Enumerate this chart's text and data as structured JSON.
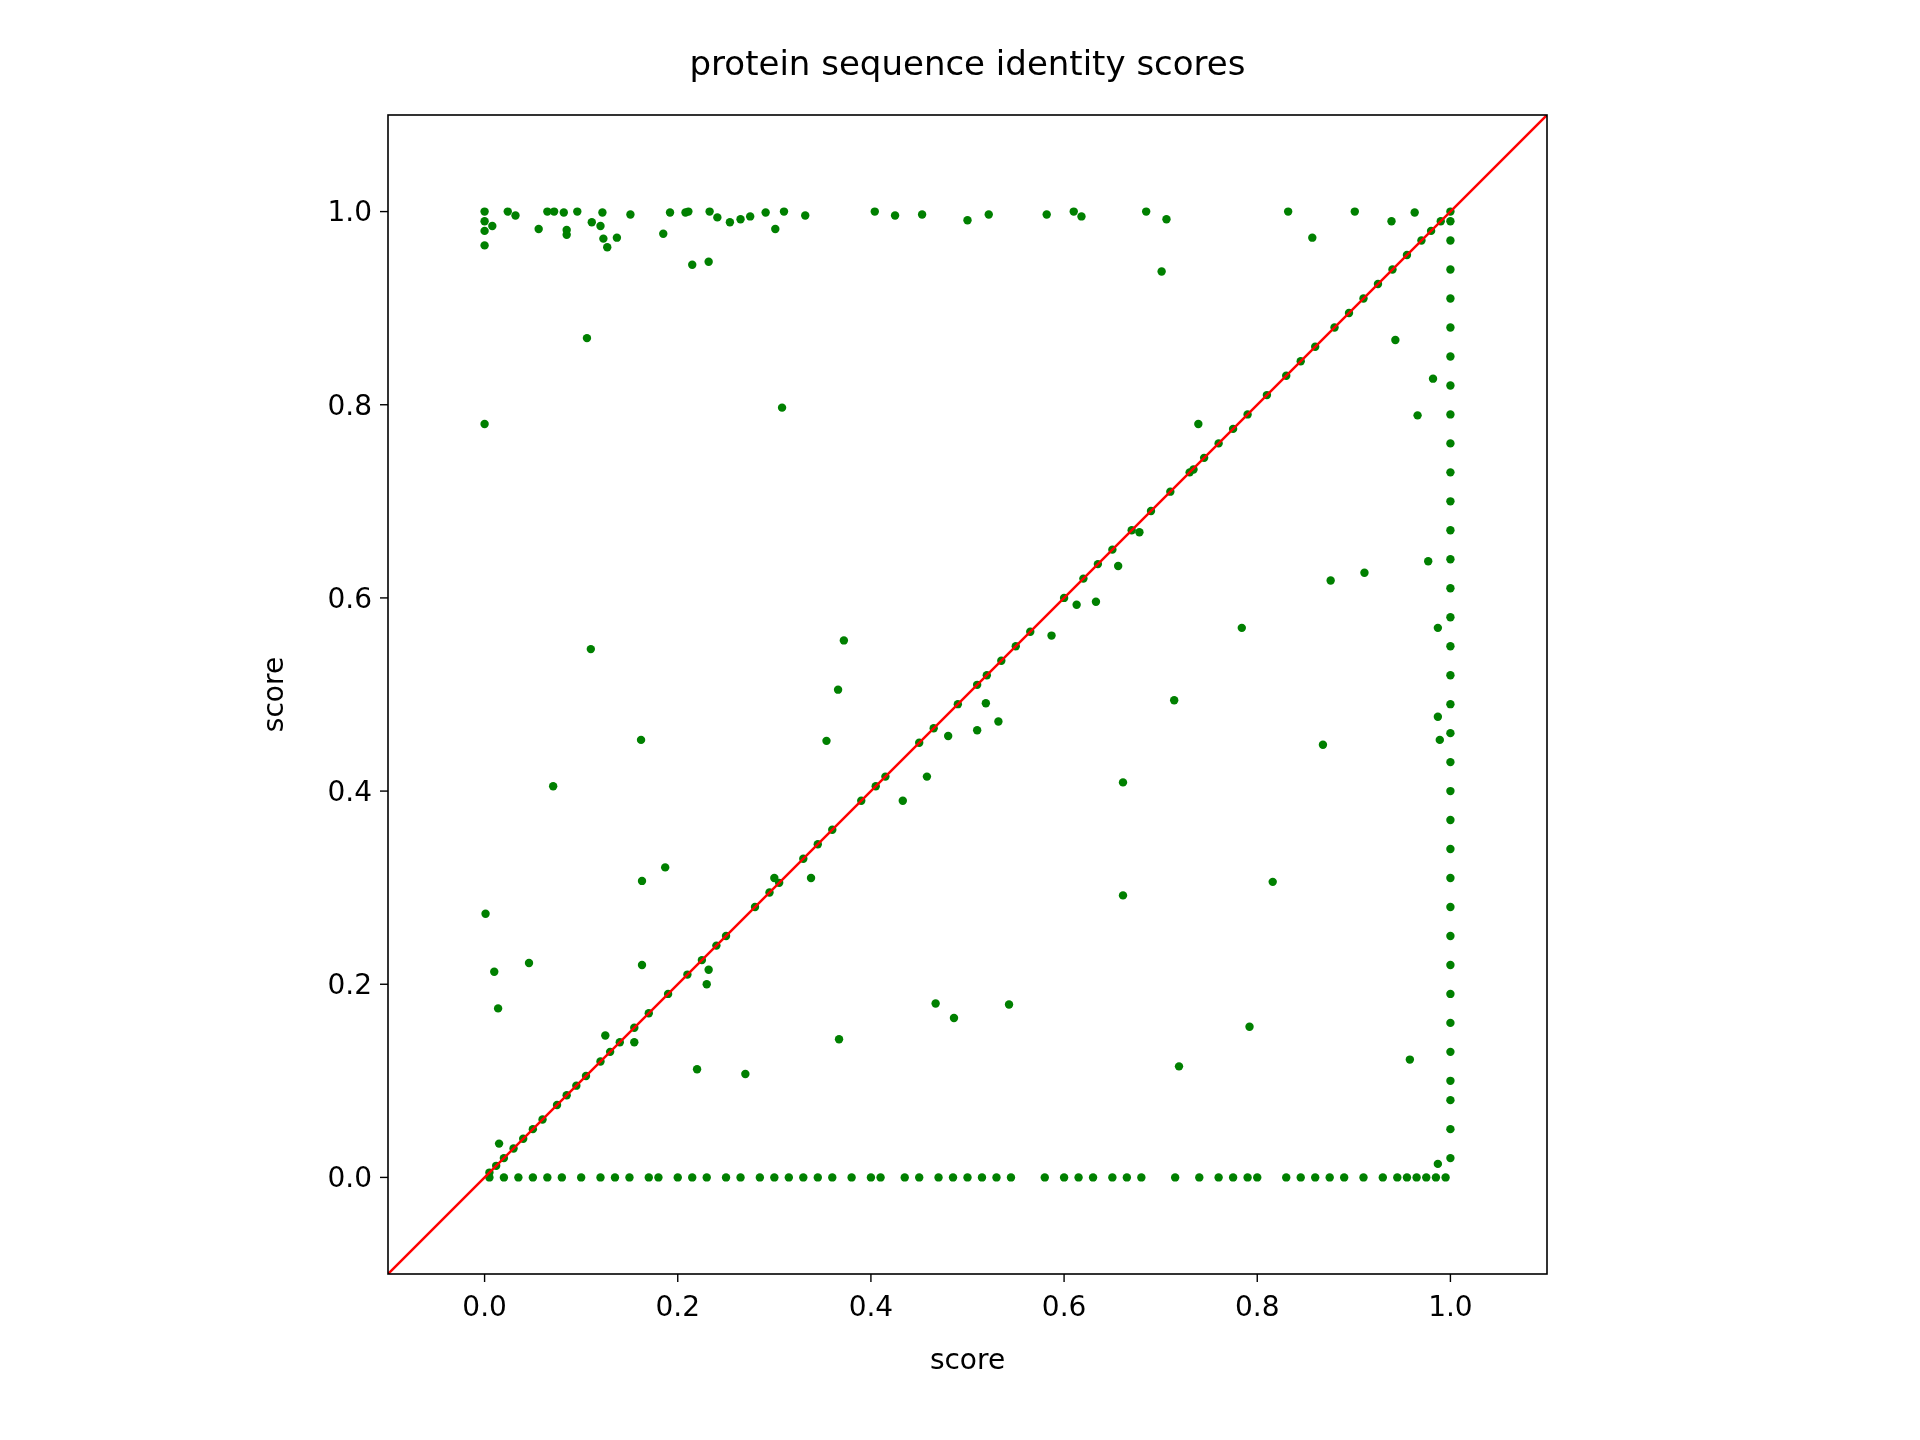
{
  "chart_data": {
    "type": "scatter",
    "title": "protein sequence identity scores",
    "xlabel": "score",
    "ylabel": "score",
    "xlim": [
      -0.1,
      1.1
    ],
    "ylim": [
      -0.1,
      1.1
    ],
    "xticks": [
      {
        "value": 0,
        "label": "0.0"
      },
      {
        "value": 0.2,
        "label": "0.2"
      },
      {
        "value": 0.4,
        "label": "0.4"
      },
      {
        "value": 0.6,
        "label": "0.6"
      },
      {
        "value": 0.8,
        "label": "0.8"
      },
      {
        "value": 1,
        "label": "1.0"
      }
    ],
    "yticks": [
      {
        "value": 0,
        "label": "0.0"
      },
      {
        "value": 0.2,
        "label": "0.2"
      },
      {
        "value": 0.4,
        "label": "0.4"
      },
      {
        "value": 0.6,
        "label": "0.6"
      },
      {
        "value": 0.8,
        "label": "0.8"
      },
      {
        "value": 1,
        "label": "1.0"
      }
    ],
    "grid": false,
    "series": [
      {
        "color": "#008000",
        "marker": "circle",
        "x": [
          0,
          0.106,
          0.308,
          0.11,
          0.372,
          0.366,
          0.354,
          0.162,
          0.071,
          0.187,
          0.163,
          0.338,
          0.001,
          0.01,
          0.046,
          0.014,
          0.163,
          0.22,
          0.27,
          0.367,
          0.467,
          0.486,
          0.543,
          0.433,
          0.458,
          0.48,
          0.519,
          0.532,
          0.51,
          0.587,
          0.613,
          0.633,
          0.656,
          0.661,
          0.661,
          0.714,
          0.719,
          0.701,
          0.739,
          0.734,
          0.678,
          0.784,
          0.792,
          0.816,
          0.868,
          0.876,
          0.911,
          0.943,
          0.966,
          0.977,
          0.982,
          0.987,
          0.987,
          0.989,
          0.958,
          0.987,
          0.232,
          0.23,
          0.015,
          0.125,
          0.155,
          0.3,
          0,
          0,
          0,
          0,
          0.008,
          0.024,
          0.032,
          0.056,
          0.065,
          0.072,
          0.082,
          0.085,
          0.085,
          0.096,
          0.111,
          0.122,
          0.12,
          0.123,
          0.127,
          0.137,
          0.151,
          0.185,
          0.192,
          0.208,
          0.211,
          0.215,
          0.233,
          0.232,
          0.241,
          0.254,
          0.265,
          0.275,
          0.291,
          0.301,
          0.31,
          0.332,
          0.404,
          0.425,
          0.453,
          0.5,
          0.522,
          0.582,
          0.61,
          0.618,
          0.685,
          0.706,
          0.832,
          0.857,
          0.901,
          0.939,
          0.963,
          0.005,
          0.012,
          0.02,
          0.03,
          0.04,
          0.05,
          0.06,
          0.075,
          0.085,
          0.095,
          0.105,
          0.12,
          0.13,
          0.14,
          0.155,
          0.17,
          0.19,
          0.21,
          0.225,
          0.24,
          0.25,
          0.28,
          0.295,
          0.305,
          0.33,
          0.345,
          0.36,
          0.39,
          0.405,
          0.415,
          0.45,
          0.465,
          0.49,
          0.51,
          0.52,
          0.535,
          0.55,
          0.565,
          0.6,
          0.62,
          0.635,
          0.65,
          0.67,
          0.69,
          0.71,
          0.73,
          0.745,
          0.76,
          0.775,
          0.79,
          0.81,
          0.83,
          0.845,
          0.86,
          0.88,
          0.895,
          0.91,
          0.925,
          0.94,
          0.955,
          0.97,
          0.98,
          0.99,
          0.005,
          0.02,
          0.035,
          0.05,
          0.065,
          0.08,
          0.1,
          0.12,
          0.135,
          0.15,
          0.17,
          0.18,
          0.2,
          0.215,
          0.23,
          0.25,
          0.265,
          0.285,
          0.3,
          0.315,
          0.33,
          0.345,
          0.36,
          0.38,
          0.4,
          0.41,
          0.435,
          0.45,
          0.47,
          0.485,
          0.5,
          0.515,
          0.53,
          0.545,
          0.58,
          0.6,
          0.615,
          0.63,
          0.65,
          0.665,
          0.68,
          0.715,
          0.74,
          0.76,
          0.775,
          0.79,
          0.8,
          0.83,
          0.845,
          0.86,
          0.875,
          0.89,
          0.91,
          0.93,
          0.945,
          0.955,
          0.965,
          0.975,
          0.985,
          0.995,
          1,
          1,
          1,
          1,
          1,
          1,
          1,
          1,
          1,
          1,
          1,
          1,
          1,
          1,
          1,
          1,
          1,
          1,
          1,
          1,
          1,
          1,
          1,
          1,
          1,
          1,
          1,
          1,
          1,
          1,
          1,
          1,
          1,
          1,
          1
        ],
        "values": [
          0.78,
          0.869,
          0.797,
          0.547,
          0.556,
          0.505,
          0.452,
          0.453,
          0.405,
          0.321,
          0.307,
          0.31,
          0.273,
          0.213,
          0.222,
          0.175,
          0.22,
          0.112,
          0.107,
          0.143,
          0.18,
          0.165,
          0.179,
          0.39,
          0.415,
          0.457,
          0.491,
          0.472,
          0.463,
          0.561,
          0.593,
          0.596,
          0.633,
          0.409,
          0.292,
          0.494,
          0.115,
          0.938,
          0.78,
          0.733,
          0.668,
          0.569,
          0.156,
          0.306,
          0.448,
          0.618,
          0.626,
          0.867,
          0.789,
          0.638,
          0.827,
          0.569,
          0.477,
          0.453,
          0.122,
          0.014,
          0.215,
          0.2,
          0.035,
          0.147,
          0.14,
          0.31,
          1,
          0.99,
          0.98,
          0.965,
          0.985,
          1,
          0.996,
          0.982,
          1,
          1,
          0.999,
          0.981,
          0.976,
          1,
          0.989,
          0.999,
          0.985,
          0.972,
          0.963,
          0.973,
          0.997,
          0.977,
          0.999,
          0.999,
          1,
          0.945,
          1,
          0.948,
          0.994,
          0.989,
          0.992,
          0.995,
          0.999,
          0.982,
          1,
          0.996,
          1,
          0.996,
          0.997,
          0.991,
          0.997,
          0.997,
          1,
          0.995,
          1,
          0.992,
          1,
          0.973,
          1,
          0.99,
          0.999,
          0.005,
          0.012,
          0.02,
          0.03,
          0.04,
          0.05,
          0.06,
          0.075,
          0.085,
          0.095,
          0.105,
          0.12,
          0.13,
          0.14,
          0.155,
          0.17,
          0.19,
          0.21,
          0.225,
          0.24,
          0.25,
          0.28,
          0.295,
          0.305,
          0.33,
          0.345,
          0.36,
          0.39,
          0.405,
          0.415,
          0.45,
          0.465,
          0.49,
          0.51,
          0.52,
          0.535,
          0.55,
          0.565,
          0.6,
          0.62,
          0.635,
          0.65,
          0.67,
          0.69,
          0.71,
          0.73,
          0.745,
          0.76,
          0.775,
          0.79,
          0.81,
          0.83,
          0.845,
          0.86,
          0.88,
          0.895,
          0.91,
          0.925,
          0.94,
          0.955,
          0.97,
          0.98,
          0.99,
          0,
          0,
          0,
          0,
          0,
          0,
          0,
          0,
          0,
          0,
          0,
          0,
          0,
          0,
          0,
          0,
          0,
          0,
          0,
          0,
          0,
          0,
          0,
          0,
          0,
          0,
          0,
          0,
          0,
          0,
          0,
          0,
          0,
          0,
          0,
          0,
          0,
          0,
          0,
          0,
          0,
          0,
          0,
          0,
          0,
          0,
          0,
          0,
          0,
          0,
          0,
          0,
          0,
          0,
          0,
          0,
          0,
          0,
          0,
          0,
          0.02,
          0.05,
          0.08,
          0.1,
          0.13,
          0.16,
          0.19,
          0.22,
          0.25,
          0.28,
          0.31,
          0.34,
          0.37,
          0.4,
          0.43,
          0.46,
          0.49,
          0.52,
          0.55,
          0.58,
          0.61,
          0.64,
          0.67,
          0.7,
          0.73,
          0.76,
          0.79,
          0.82,
          0.85,
          0.88,
          0.91,
          0.94,
          0.97,
          0.99,
          1
        ]
      },
      {
        "type": "line",
        "color": "#ff0000",
        "marker": "none",
        "x": [
          -0.1,
          1.1
        ],
        "values": [
          -0.1,
          1.1
        ]
      }
    ]
  }
}
